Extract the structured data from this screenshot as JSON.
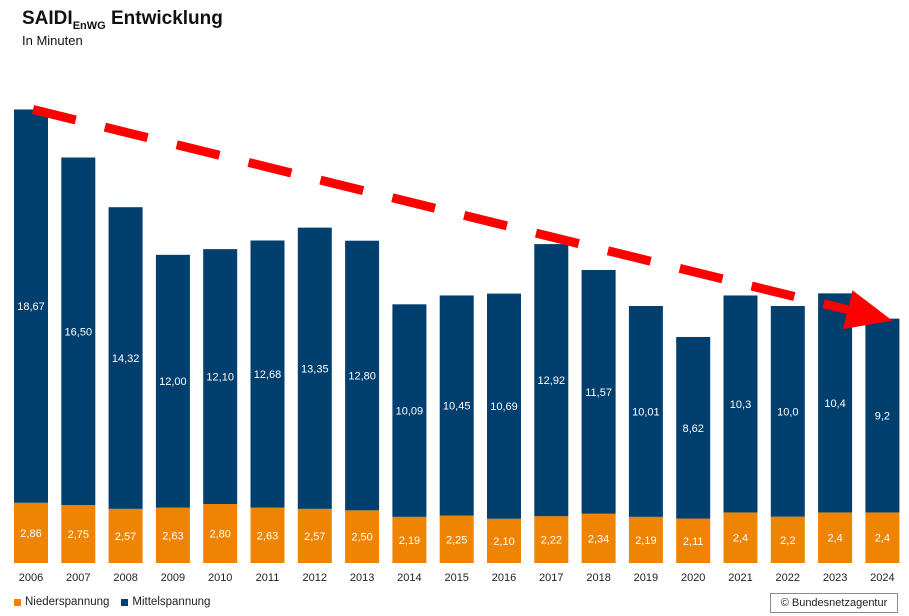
{
  "header": {
    "title_main": "SAIDI",
    "title_sub": "EnWG",
    "title_rest": " Entwicklung",
    "subtitle": "In Minuten"
  },
  "colors": {
    "mittelspannung": "#003f6e",
    "niederspannung": "#ee8402",
    "trend_arrow": "#ff0000"
  },
  "copyright": "© Bundesnetzagentur",
  "chart_data": {
    "type": "bar",
    "stacked": true,
    "title": "SAIDI EnWG Entwicklung",
    "subtitle": "In Minuten",
    "categories": [
      "2006",
      "2007",
      "2008",
      "2009",
      "2010",
      "2011",
      "2012",
      "2013",
      "2014",
      "2015",
      "2016",
      "2017",
      "2018",
      "2019",
      "2020",
      "2021",
      "2022",
      "2023",
      "2024"
    ],
    "series": [
      {
        "name": "Niederspannung",
        "color": "#ee8402",
        "values": [
          2.86,
          2.75,
          2.57,
          2.63,
          2.8,
          2.63,
          2.57,
          2.5,
          2.19,
          2.25,
          2.1,
          2.22,
          2.34,
          2.19,
          2.11,
          2.4,
          2.2,
          2.4,
          2.4
        ],
        "labels": [
          "2,86",
          "2,75",
          "2,57",
          "2,63",
          "2,80",
          "2,63",
          "2,57",
          "2,50",
          "2,19",
          "2,25",
          "2,10",
          "2,22",
          "2,34",
          "2,19",
          "2,11",
          "2,4",
          "2,2",
          "2,4",
          "2,4"
        ]
      },
      {
        "name": "Mittelspannung",
        "color": "#003f6e",
        "values": [
          18.67,
          16.5,
          14.32,
          12.0,
          12.1,
          12.68,
          13.35,
          12.8,
          10.09,
          10.45,
          10.69,
          12.92,
          11.57,
          10.01,
          8.62,
          10.3,
          10.0,
          10.4,
          9.2
        ],
        "labels": [
          "18,67",
          "16,50",
          "14,32",
          "12,00",
          "12,10",
          "12,68",
          "13,35",
          "12,80",
          "10,09",
          "10,45",
          "10,69",
          "12,92",
          "11,57",
          "10,01",
          "8,62",
          "10,3",
          "10,0",
          "10,4",
          "9,2"
        ]
      }
    ],
    "annotations": [
      {
        "type": "dashed-trend-arrow",
        "from": "2006",
        "to": "2024",
        "direction": "downward"
      }
    ],
    "legend_position": "bottom-left",
    "grid": false,
    "ylim": [
      0,
      21.6
    ]
  }
}
